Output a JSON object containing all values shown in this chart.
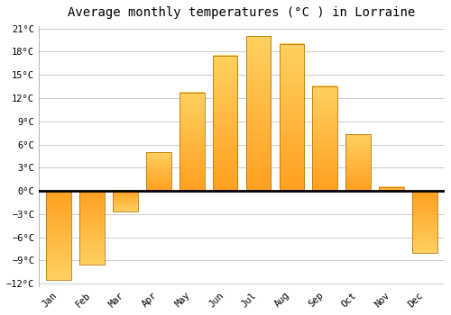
{
  "title": "Average monthly temperatures (°C ) in Lorraine",
  "months": [
    "Jan",
    "Feb",
    "Mar",
    "Apr",
    "May",
    "Jun",
    "Jul",
    "Aug",
    "Sep",
    "Oct",
    "Nov",
    "Dec"
  ],
  "values": [
    -11.5,
    -9.5,
    -2.7,
    5.0,
    12.7,
    17.5,
    20.0,
    19.0,
    13.5,
    7.3,
    0.5,
    -8.0
  ],
  "bar_color_top": "#FFD060",
  "bar_color_bottom": "#FFA020",
  "bar_edge_color": "#B8780A",
  "ylim": [
    -12,
    21
  ],
  "yticks": [
    -12,
    -9,
    -6,
    -3,
    0,
    3,
    6,
    9,
    12,
    15,
    18,
    21
  ],
  "ytick_labels": [
    "-12°C",
    "-9°C",
    "-6°C",
    "-3°C",
    "0°C",
    "3°C",
    "6°C",
    "9°C",
    "12°C",
    "15°C",
    "18°C",
    "21°C"
  ],
  "background_color": "#FFFFFF",
  "grid_color": "#CCCCCC",
  "title_fontsize": 10,
  "bar_width": 0.75
}
